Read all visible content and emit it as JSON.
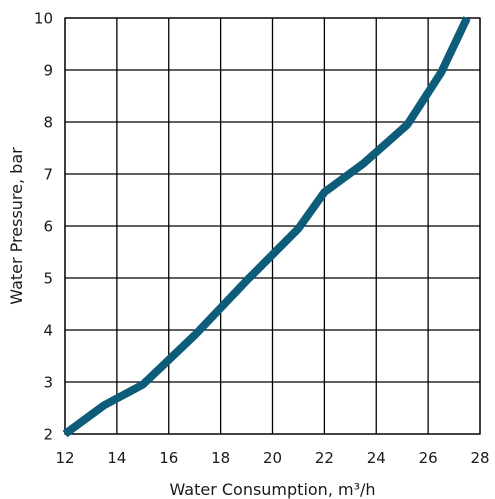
{
  "chart_data": {
    "type": "line",
    "title": "",
    "xlabel": "Water Consumption, m³/h",
    "ylabel": "Water Pressure, bar",
    "xlim": [
      12,
      28
    ],
    "ylim": [
      2,
      10
    ],
    "x_ticks": [
      12,
      14,
      16,
      18,
      20,
      22,
      24,
      26,
      28
    ],
    "y_ticks": [
      2,
      3,
      4,
      5,
      6,
      7,
      8,
      9,
      10
    ],
    "x_tick_labels": [
      "12",
      "14",
      "16",
      "18",
      "20",
      "22",
      "24",
      "26",
      "28"
    ],
    "y_tick_labels": [
      "2",
      "3",
      "4",
      "5",
      "6",
      "7",
      "8",
      "9",
      "10"
    ],
    "grid": true,
    "legend": "none",
    "line_color": "#0d5c7a",
    "grid_color": "#000000",
    "series": [
      {
        "x": [
          12.0,
          13.5,
          15.0,
          17.0,
          19.0,
          21.0,
          22.0,
          23.5,
          25.2,
          26.5,
          27.5
        ],
        "y": [
          2.0,
          2.55,
          2.95,
          3.9,
          4.95,
          5.95,
          6.65,
          7.2,
          7.95,
          8.95,
          10.0
        ]
      }
    ]
  }
}
